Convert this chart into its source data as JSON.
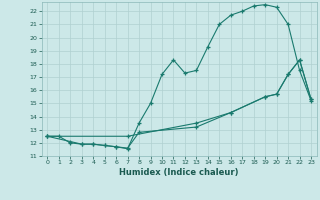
{
  "title": "",
  "xlabel": "Humidex (Indice chaleur)",
  "xlim": [
    -0.5,
    23.5
  ],
  "ylim": [
    11,
    22.7
  ],
  "xticks": [
    0,
    1,
    2,
    3,
    4,
    5,
    6,
    7,
    8,
    9,
    10,
    11,
    12,
    13,
    14,
    15,
    16,
    17,
    18,
    19,
    20,
    21,
    22,
    23
  ],
  "yticks": [
    11,
    12,
    13,
    14,
    15,
    16,
    17,
    18,
    19,
    20,
    21,
    22
  ],
  "bg_color": "#cce8e8",
  "line_color": "#1a7a6e",
  "grid_color": "#b0d0d0",
  "curve1_x": [
    0,
    1,
    2,
    3,
    4,
    5,
    6,
    7,
    8,
    9,
    10,
    11,
    12,
    13,
    14,
    15,
    16,
    17,
    18,
    19,
    20,
    21,
    22,
    23
  ],
  "curve1_y": [
    12.5,
    12.5,
    12.0,
    11.9,
    11.9,
    11.8,
    11.7,
    11.55,
    13.5,
    15.0,
    17.2,
    18.3,
    17.3,
    17.5,
    19.3,
    21.0,
    21.7,
    22.0,
    22.4,
    22.5,
    22.3,
    21.0,
    17.5,
    15.2
  ],
  "curve2_x": [
    0,
    2,
    3,
    4,
    5,
    6,
    7,
    8,
    13,
    16,
    19,
    20,
    21,
    22,
    23
  ],
  "curve2_y": [
    12.5,
    12.1,
    11.9,
    11.9,
    11.8,
    11.7,
    11.6,
    12.8,
    13.2,
    14.3,
    15.5,
    15.7,
    17.2,
    18.3,
    15.3
  ],
  "curve3_x": [
    0,
    7,
    13,
    16,
    19,
    20,
    21,
    22,
    23
  ],
  "curve3_y": [
    12.5,
    12.5,
    13.5,
    14.3,
    15.5,
    15.7,
    17.2,
    18.3,
    15.3
  ]
}
